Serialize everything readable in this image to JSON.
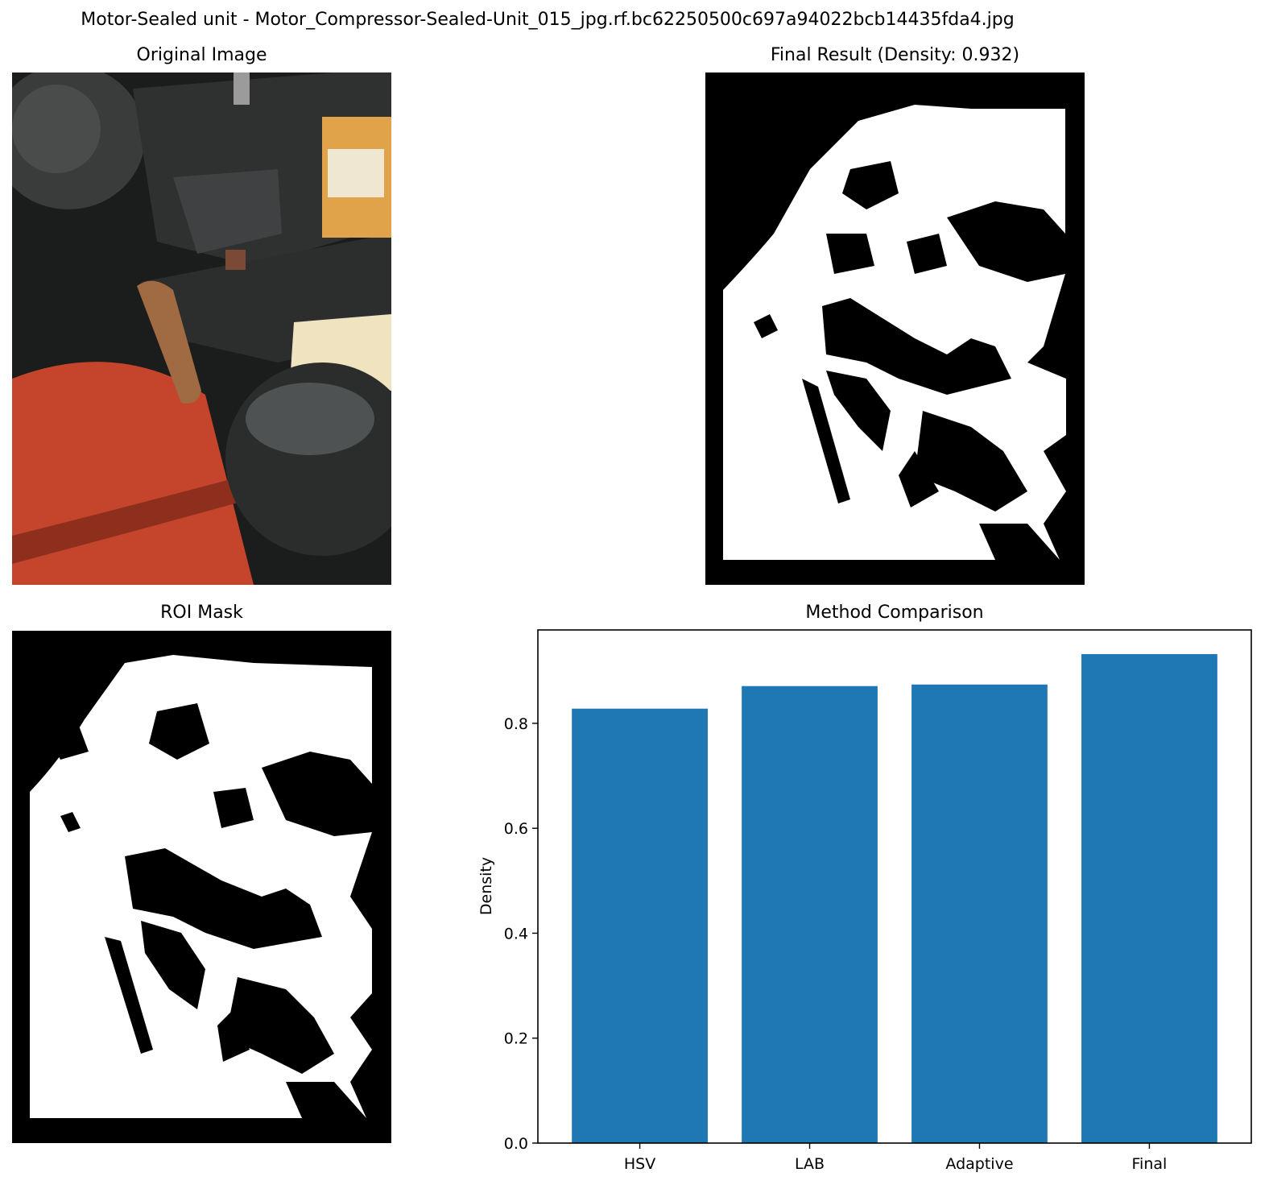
{
  "figure": {
    "suptitle": "Motor-Sealed unit - Motor_Compressor-Sealed-Unit_015_jpg.rf.bc62250500c697a94022bcb14435fda4.jpg"
  },
  "panels": {
    "original": {
      "title": "Original Image"
    },
    "final": {
      "title": "Final Result (Density: 0.932)"
    },
    "roi": {
      "title": "ROI Mask"
    },
    "comparison": {
      "title": "Method Comparison"
    }
  },
  "colors": {
    "bar": "#1f77b4",
    "mask_bg": "#000000",
    "mask_fg": "#ffffff",
    "photo_red": "#c4452b",
    "photo_dark": "#2a2b2a",
    "photo_label": "#e0a34a"
  },
  "chart_data": {
    "type": "bar",
    "title": "Method Comparison",
    "categories": [
      "HSV",
      "LAB",
      "Adaptive",
      "Final"
    ],
    "values": [
      0.828,
      0.871,
      0.874,
      0.932
    ],
    "xlabel": "",
    "ylabel": "Density",
    "yticks": [
      "0.0",
      "0.2",
      "0.4",
      "0.6",
      "0.8"
    ],
    "ylim": [
      0,
      0.978
    ],
    "grid": false,
    "legend": "none"
  }
}
